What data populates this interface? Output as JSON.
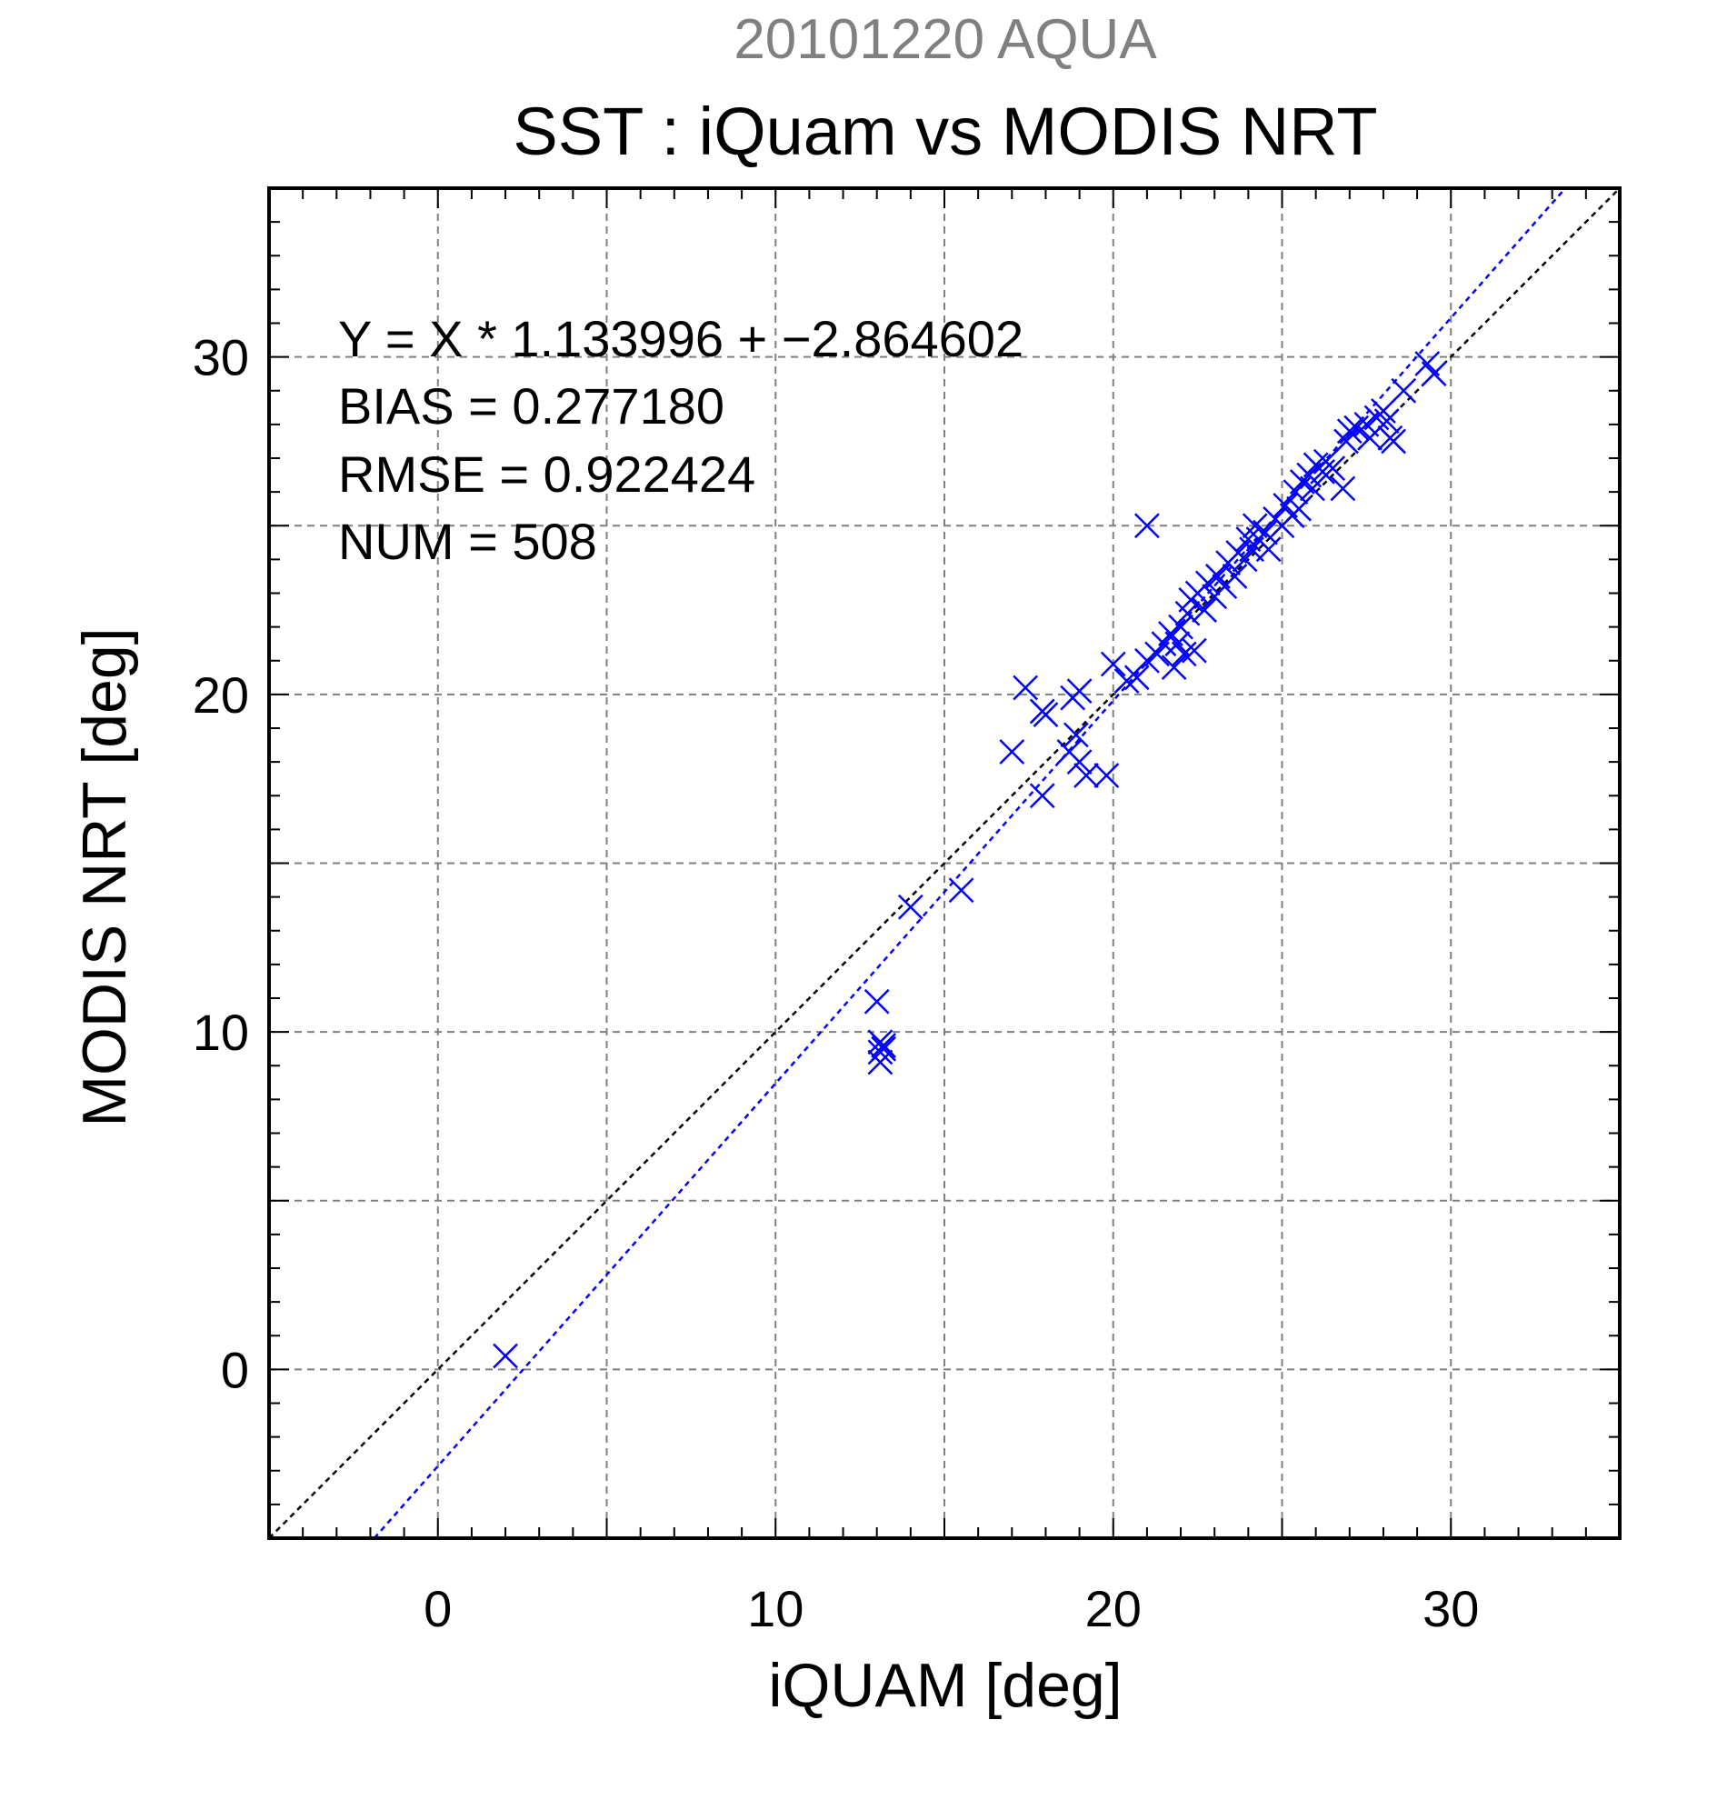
{
  "chart_data": {
    "type": "scatter",
    "suptitle": "20101220 AQUA",
    "title": "SST : iQuam vs MODIS NRT",
    "xlabel": "iQUAM [deg]",
    "ylabel": "MODIS NRT [deg]",
    "xlim": [
      -5,
      35
    ],
    "ylim": [
      -5,
      35
    ],
    "x_ticks": [
      0,
      10,
      20,
      30
    ],
    "y_ticks": [
      0,
      10,
      20,
      30
    ],
    "x_tick_labels": [
      "0",
      "10",
      "20",
      "30"
    ],
    "y_tick_labels": [
      "0",
      "10",
      "20",
      "30"
    ],
    "grid": true,
    "grid_step": 5,
    "minor_tick_step": 1,
    "stats": {
      "line1": "Y = X * 1.133996 + −2.864602",
      "line2": "BIAS = 0.277180",
      "line3": "RMSE = 0.922424",
      "line4": "NUM = 508"
    },
    "fit": {
      "slope": 1.133996,
      "intercept": -2.864602
    },
    "colors": {
      "suptitle": "#808080",
      "points": "#0000ff",
      "fit_line": "#0000ff",
      "identity_line": "#000000",
      "grid": "#808080"
    },
    "marker": "x",
    "series": [
      {
        "points": [
          [
            2.0,
            0.4
          ],
          [
            13.0,
            10.9
          ],
          [
            13.1,
            9.7
          ],
          [
            13.1,
            9.4
          ],
          [
            13.2,
            9.6
          ],
          [
            13.1,
            9.1
          ],
          [
            13.2,
            9.5
          ],
          [
            14.0,
            13.7
          ],
          [
            15.5,
            14.2
          ],
          [
            17.0,
            18.3
          ],
          [
            17.4,
            20.2
          ],
          [
            17.9,
            19.5
          ],
          [
            18.0,
            19.4
          ],
          [
            17.9,
            17.0
          ],
          [
            18.7,
            18.3
          ],
          [
            18.9,
            18.8
          ],
          [
            18.8,
            19.9
          ],
          [
            19.0,
            20.1
          ],
          [
            19.0,
            18.0
          ],
          [
            19.2,
            17.6
          ],
          [
            19.8,
            17.6
          ],
          [
            20.0,
            20.9
          ],
          [
            20.4,
            20.4
          ],
          [
            20.7,
            20.5
          ],
          [
            21.0,
            25.0
          ],
          [
            21.0,
            21.0
          ],
          [
            21.3,
            21.2
          ],
          [
            21.5,
            21.5
          ],
          [
            21.7,
            21.8
          ],
          [
            21.8,
            20.8
          ],
          [
            21.9,
            21.5
          ],
          [
            22.0,
            22.0
          ],
          [
            22.1,
            21.2
          ],
          [
            22.2,
            22.4
          ],
          [
            22.3,
            22.8
          ],
          [
            22.4,
            21.3
          ],
          [
            22.5,
            23.0
          ],
          [
            22.7,
            22.5
          ],
          [
            22.8,
            23.3
          ],
          [
            23.0,
            22.9
          ],
          [
            23.1,
            23.5
          ],
          [
            23.3,
            23.2
          ],
          [
            23.4,
            23.9
          ],
          [
            23.6,
            23.5
          ],
          [
            23.7,
            24.2
          ],
          [
            23.9,
            24.0
          ],
          [
            24.0,
            24.6
          ],
          [
            24.1,
            24.3
          ],
          [
            24.2,
            25.0
          ],
          [
            24.3,
            24.6
          ],
          [
            24.5,
            24.8
          ],
          [
            24.6,
            24.3
          ],
          [
            24.8,
            25.2
          ],
          [
            25.0,
            25.0
          ],
          [
            25.1,
            25.6
          ],
          [
            25.3,
            25.3
          ],
          [
            25.4,
            26.0
          ],
          [
            25.5,
            25.5
          ],
          [
            25.6,
            26.3
          ],
          [
            25.8,
            26.5
          ],
          [
            25.9,
            26.1
          ],
          [
            26.0,
            26.8
          ],
          [
            26.2,
            26.6
          ],
          [
            26.3,
            26.9
          ],
          [
            26.5,
            26.7
          ],
          [
            26.8,
            26.1
          ],
          [
            26.9,
            27.5
          ],
          [
            27.0,
            27.8
          ],
          [
            27.2,
            27.9
          ],
          [
            27.5,
            28.0
          ],
          [
            27.6,
            27.6
          ],
          [
            27.8,
            28.2
          ],
          [
            28.0,
            28.4
          ],
          [
            28.1,
            28.1
          ],
          [
            28.2,
            27.6
          ],
          [
            28.3,
            27.5
          ],
          [
            28.6,
            29.0
          ],
          [
            29.3,
            29.8
          ],
          [
            29.5,
            29.5
          ]
        ]
      }
    ]
  }
}
